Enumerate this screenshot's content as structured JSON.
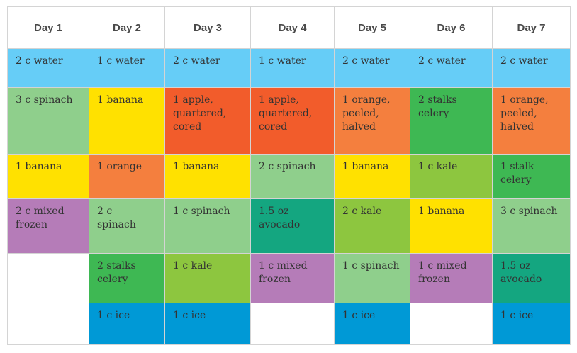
{
  "headers": [
    "Day 1",
    "Day 2",
    "Day 3",
    "Day 4",
    "Day 5",
    "Day 6",
    "Day 7"
  ],
  "colors": {
    "water": "#66cdf7",
    "spinach": "#8fcf8c",
    "banana": "#ffe100",
    "apple": "#f25c2b",
    "orange": "#f47f3e",
    "celery": "#3eb853",
    "kale": "#8dc63f",
    "mixed": "#b57cb8",
    "avocado": "#14a680",
    "ice": "#0099d6",
    "empty": "#ffffff"
  },
  "rows": [
    [
      {
        "text": "2 c water",
        "color": "#66cdf7"
      },
      {
        "text": "1 c water",
        "color": "#66cdf7"
      },
      {
        "text": "2 c water",
        "color": "#66cdf7"
      },
      {
        "text": "1 c water",
        "color": "#66cdf7"
      },
      {
        "text": "2 c water",
        "color": "#66cdf7"
      },
      {
        "text": "2 c water",
        "color": "#66cdf7"
      },
      {
        "text": "2 c water",
        "color": "#66cdf7"
      }
    ],
    [
      {
        "text": "3 c spinach",
        "color": "#8fcf8c"
      },
      {
        "text": "1 banana",
        "color": "#ffe100"
      },
      {
        "text": "1 apple,\nquartered,\ncored",
        "color": "#f25c2b"
      },
      {
        "text": "1 apple,\nquartered,\ncored",
        "color": "#f25c2b"
      },
      {
        "text": "1 orange,\npeeled,\nhalved",
        "color": "#f47f3e"
      },
      {
        "text": "2 stalks\ncelery",
        "color": "#3eb853"
      },
      {
        "text": "1 orange,\npeeled,\nhalved",
        "color": "#f47f3e"
      }
    ],
    [
      {
        "text": "1 banana",
        "color": "#ffe100"
      },
      {
        "text": "1 orange",
        "color": "#f47f3e"
      },
      {
        "text": "1 banana",
        "color": "#ffe100"
      },
      {
        "text": "2 c spinach",
        "color": "#8fcf8c"
      },
      {
        "text": "1 banana",
        "color": "#ffe100"
      },
      {
        "text": "1 c kale",
        "color": "#8dc63f"
      },
      {
        "text": "1 stalk\ncelery",
        "color": "#3eb853"
      }
    ],
    [
      {
        "text": "2 c mixed\nfrozen",
        "color": "#b57cb8"
      },
      {
        "text": "2 c\nspinach",
        "color": "#8fcf8c"
      },
      {
        "text": "1 c spinach",
        "color": "#8fcf8c"
      },
      {
        "text": "1.5 oz\navocado",
        "color": "#14a680"
      },
      {
        "text": "2 c kale",
        "color": "#8dc63f"
      },
      {
        "text": "1 banana",
        "color": "#ffe100"
      },
      {
        "text": "3 c spinach",
        "color": "#8fcf8c"
      }
    ],
    [
      {
        "text": "",
        "color": "#ffffff"
      },
      {
        "text": "2 stalks\ncelery",
        "color": "#3eb853"
      },
      {
        "text": "1 c kale",
        "color": "#8dc63f"
      },
      {
        "text": "1 c mixed\nfrozen",
        "color": "#b57cb8"
      },
      {
        "text": "1 c spinach",
        "color": "#8fcf8c"
      },
      {
        "text": "1 c mixed\nfrozen",
        "color": "#b57cb8"
      },
      {
        "text": "1.5 oz\navocado",
        "color": "#14a680"
      }
    ],
    [
      {
        "text": "",
        "color": "#ffffff"
      },
      {
        "text": "1 c ice",
        "color": "#0099d6"
      },
      {
        "text": "1 c ice",
        "color": "#0099d6"
      },
      {
        "text": "",
        "color": "#ffffff"
      },
      {
        "text": "1 c ice",
        "color": "#0099d6"
      },
      {
        "text": "",
        "color": "#ffffff"
      },
      {
        "text": "1 c ice",
        "color": "#0099d6"
      }
    ]
  ]
}
